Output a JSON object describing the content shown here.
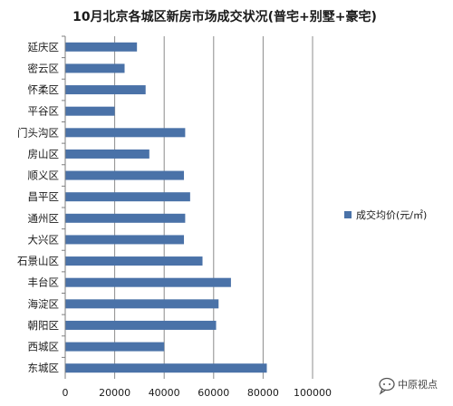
{
  "chart_data": {
    "type": "bar",
    "orientation": "horizontal",
    "title": "10月北京各城区新房市场成交状况(普宅+别墅+豪宅)",
    "categories": [
      "延庆区",
      "密云区",
      "怀柔区",
      "平谷区",
      "门头沟区",
      "房山区",
      "顺义区",
      "昌平区",
      "通州区",
      "大兴区",
      "石景山区",
      "丰台区",
      "海淀区",
      "朝阳区",
      "西城区",
      "东城区"
    ],
    "series": [
      {
        "name": "成交均价(元/㎡)",
        "values": [
          29000,
          24000,
          32500,
          20000,
          48500,
          34000,
          48000,
          50500,
          48500,
          48000,
          55500,
          67000,
          62000,
          61000,
          40000,
          81500
        ]
      }
    ],
    "xlim": [
      0,
      100000
    ],
    "xticks": [
      0,
      20000,
      40000,
      60000,
      80000,
      100000
    ],
    "grid": true,
    "legend_position": "right",
    "bar_color": "#4a72a8"
  },
  "watermark": {
    "icon": "chat-bubble-icon",
    "text": "中原视点"
  }
}
